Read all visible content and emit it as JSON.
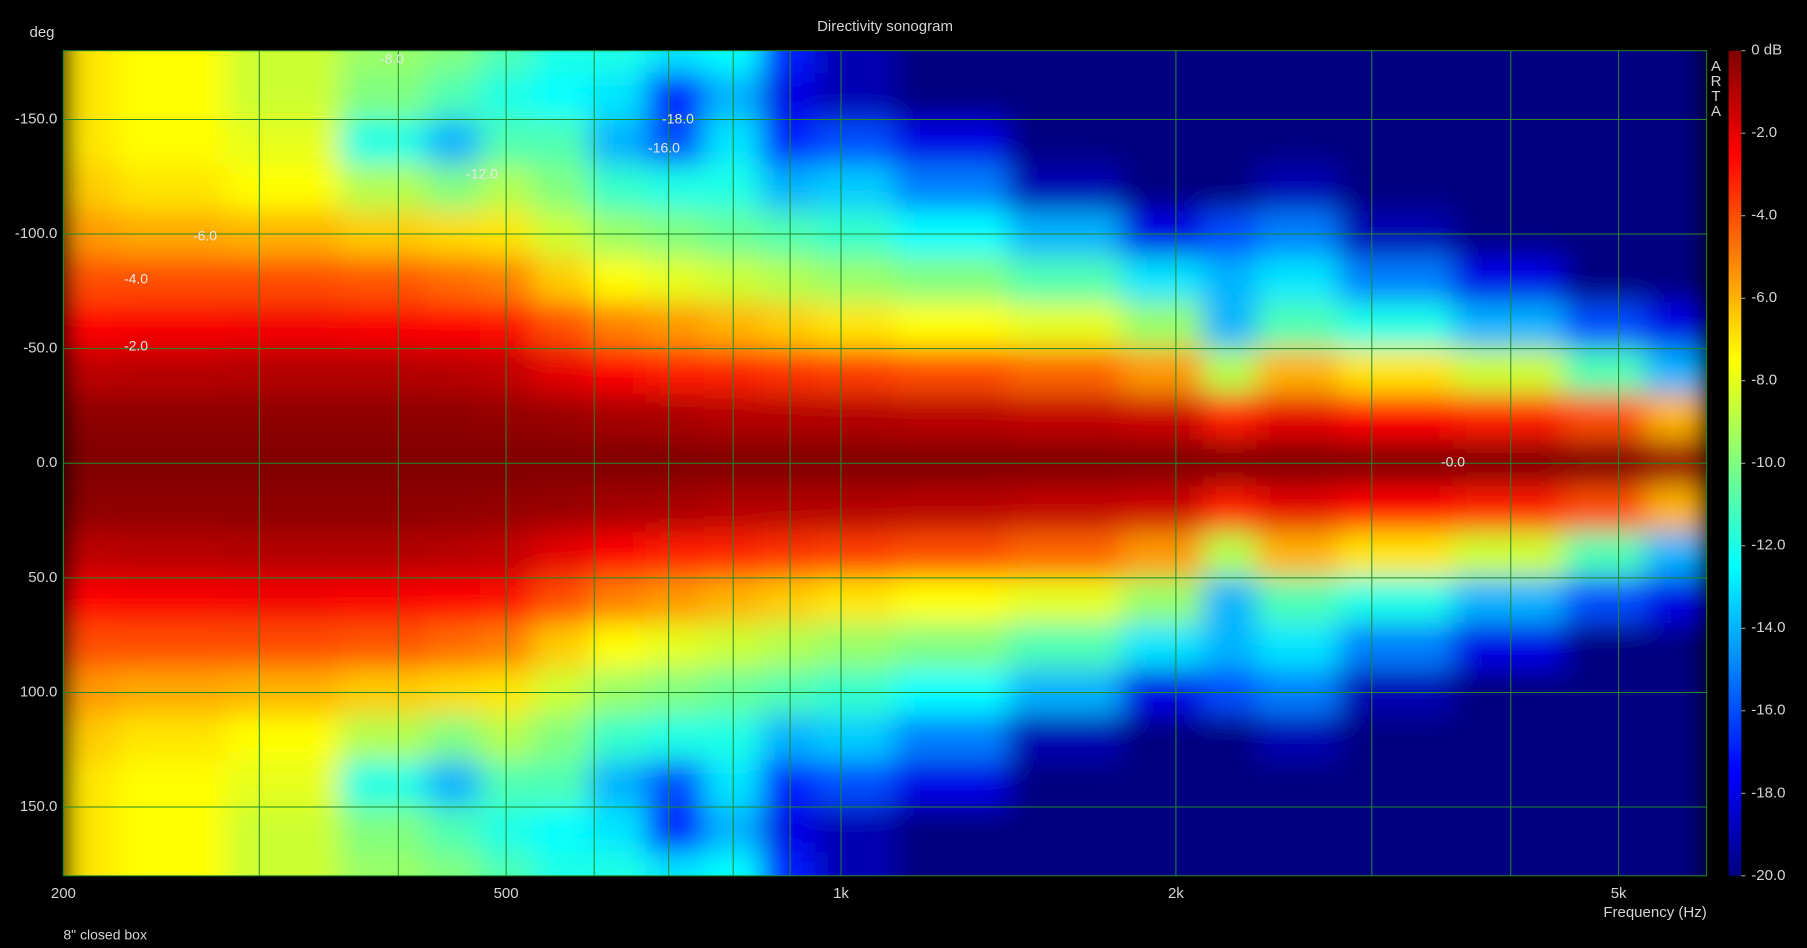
{
  "chart_data": {
    "type": "heatmap",
    "title": "Directivity sonogram",
    "ylabel": "deg",
    "xlabel": "Frequency (Hz)",
    "caption": "8\" closed box",
    "watermark": "ARTA",
    "xscale": "log",
    "xlim": [
      200,
      6000
    ],
    "xticks": [
      200,
      500,
      {
        "value": 1000,
        "label": "1k"
      },
      {
        "value": 2000,
        "label": "2k"
      },
      {
        "value": 5000,
        "label": "5k"
      }
    ],
    "xminorticks": [
      300,
      400,
      600,
      700,
      800,
      900,
      3000,
      4000
    ],
    "ylim": [
      -180,
      180
    ],
    "y_reversed": true,
    "yticks": [
      {
        "value": -150,
        "label": "-150.0"
      },
      {
        "value": -100,
        "label": "-100.0"
      },
      {
        "value": -50,
        "label": "-50.0"
      },
      {
        "value": 0,
        "label": "0.0"
      },
      {
        "value": 50,
        "label": "50.0"
      },
      {
        "value": 100,
        "label": "100.0"
      },
      {
        "value": 150,
        "label": "150.0"
      }
    ],
    "grid": true,
    "grid_color": "#1f8a2a",
    "zlim": [
      -20,
      0
    ],
    "zticks": [
      {
        "value": 0,
        "label": "0 dB"
      },
      {
        "value": -2,
        "label": "-2.0"
      },
      {
        "value": -4,
        "label": "-4.0"
      },
      {
        "value": -6,
        "label": "-6.0"
      },
      {
        "value": -8,
        "label": "-8.0"
      },
      {
        "value": -10,
        "label": "-10.0"
      },
      {
        "value": -12,
        "label": "-12.0"
      },
      {
        "value": -14,
        "label": "-14.0"
      },
      {
        "value": -16,
        "label": "-16.0"
      },
      {
        "value": -18,
        "label": "-18.0"
      },
      {
        "value": -20,
        "label": "-20.0"
      }
    ],
    "colormap": [
      "#000080",
      "#0000ff",
      "#0080ff",
      "#00ffff",
      "#80ff80",
      "#ffff00",
      "#ff8000",
      "#ff0000",
      "#800000"
    ],
    "annotations": [
      "-8.0",
      "-6.0",
      "-4.0",
      "-2.0",
      "-18.0",
      "-16.0",
      "-12.0",
      "-0.0"
    ],
    "x": [
      200,
      250,
      315,
      400,
      450,
      500,
      560,
      630,
      710,
      800,
      900,
      1000,
      1250,
      1600,
      2000,
      2240,
      2500,
      3150,
      4000,
      5000,
      5600
    ],
    "y": [
      -180,
      -160,
      -140,
      -120,
      -100,
      -80,
      -60,
      -40,
      -20,
      0,
      20,
      40,
      60,
      80,
      100,
      120,
      140,
      160,
      180
    ],
    "z": [
      [
        -7,
        -7.5,
        -8.5,
        -9.5,
        -10,
        -11,
        -12,
        -12,
        -13,
        -12.5,
        -17,
        -19,
        -20,
        -20,
        -20,
        -20,
        -20,
        -20,
        -20,
        -20,
        -20
      ],
      [
        -7,
        -7.5,
        -8.5,
        -10,
        -11,
        -12,
        -12.5,
        -13,
        -17,
        -14,
        -18,
        -19,
        -20,
        -20,
        -20,
        -20,
        -20,
        -20,
        -20,
        -20,
        -20
      ],
      [
        -7,
        -7.5,
        -8,
        -12,
        -14,
        -11,
        -11,
        -14,
        -16,
        -13,
        -17,
        -16,
        -18,
        -20,
        -20,
        -20,
        -20,
        -20,
        -20,
        -20,
        -20
      ],
      [
        -6.5,
        -7,
        -7.5,
        -9,
        -10,
        -9,
        -10,
        -11.5,
        -12,
        -12,
        -14,
        -13.5,
        -15,
        -19,
        -20,
        -20,
        -19,
        -20,
        -20,
        -20,
        -20
      ],
      [
        -5.5,
        -5.8,
        -6,
        -6.5,
        -6.8,
        -7,
        -8.5,
        -9.5,
        -10,
        -10.5,
        -11,
        -11.5,
        -12.5,
        -14,
        -18,
        -16,
        -15,
        -19,
        -20,
        -20,
        -20
      ],
      [
        -4,
        -4,
        -4,
        -4.2,
        -4.6,
        -5,
        -6.5,
        -7.5,
        -8,
        -8.5,
        -9,
        -9.5,
        -10,
        -11,
        -13,
        -14,
        -13,
        -15,
        -18,
        -20,
        -20
      ],
      [
        -2.5,
        -2.4,
        -2.3,
        -2.4,
        -2.6,
        -2.8,
        -4,
        -5,
        -5.5,
        -6,
        -6.5,
        -7,
        -7.5,
        -8,
        -9.5,
        -14,
        -11,
        -12,
        -14,
        -16,
        -18
      ],
      [
        -1.2,
        -1.1,
        -1,
        -1,
        -1.1,
        -1.3,
        -2,
        -2.5,
        -3,
        -3.2,
        -3.5,
        -3.7,
        -4,
        -4.5,
        -5.5,
        -9,
        -6,
        -7,
        -8.5,
        -11,
        -14
      ],
      [
        -0.3,
        -0.3,
        -0.3,
        -0.3,
        -0.3,
        -0.4,
        -0.5,
        -0.7,
        -0.8,
        -1,
        -1,
        -1,
        -1.1,
        -1.3,
        -1.5,
        -3,
        -2,
        -2.5,
        -3,
        -4,
        -6
      ],
      [
        0,
        0,
        0,
        0,
        0,
        0,
        0,
        0,
        0,
        0,
        0,
        0,
        0,
        0,
        0,
        0,
        0,
        0,
        0,
        0,
        -0.5
      ],
      [
        -0.3,
        -0.3,
        -0.3,
        -0.3,
        -0.3,
        -0.4,
        -0.5,
        -0.7,
        -0.8,
        -1,
        -1,
        -1,
        -1.1,
        -1.3,
        -1.5,
        -3,
        -2,
        -2.5,
        -3,
        -4,
        -6
      ],
      [
        -1.2,
        -1.1,
        -1,
        -1,
        -1.1,
        -1.3,
        -2,
        -2.5,
        -3,
        -3.2,
        -3.5,
        -3.7,
        -4,
        -4.5,
        -5.5,
        -9,
        -6,
        -7,
        -8.5,
        -11,
        -14
      ],
      [
        -2.5,
        -2.4,
        -2.3,
        -2.4,
        -2.6,
        -2.8,
        -4,
        -5,
        -5.5,
        -6,
        -6.5,
        -7,
        -7.5,
        -8,
        -9.5,
        -14,
        -11,
        -12,
        -14,
        -16,
        -18
      ],
      [
        -4,
        -4,
        -4,
        -4.2,
        -4.6,
        -5,
        -6.5,
        -7.5,
        -8,
        -8.5,
        -9,
        -9.5,
        -10,
        -11,
        -13,
        -14,
        -13,
        -15,
        -18,
        -20,
        -20
      ],
      [
        -5.5,
        -5.8,
        -6,
        -6.5,
        -6.8,
        -7,
        -8.5,
        -9.5,
        -10,
        -10.5,
        -11,
        -11.5,
        -12.5,
        -14,
        -18,
        -16,
        -15,
        -19,
        -20,
        -20,
        -20
      ],
      [
        -6.5,
        -7,
        -7.5,
        -9,
        -10,
        -9,
        -10,
        -11.5,
        -12,
        -12,
        -14,
        -13.5,
        -15,
        -19,
        -20,
        -20,
        -19,
        -20,
        -20,
        -20,
        -20
      ],
      [
        -7,
        -7.5,
        -8,
        -12,
        -14,
        -11,
        -11,
        -14,
        -16,
        -13,
        -17,
        -16,
        -18,
        -20,
        -20,
        -20,
        -20,
        -20,
        -20,
        -20,
        -20
      ],
      [
        -7,
        -7.5,
        -8.5,
        -10,
        -11,
        -12,
        -12.5,
        -13,
        -17,
        -14,
        -18,
        -19,
        -20,
        -20,
        -20,
        -20,
        -20,
        -20,
        -20,
        -20,
        -20
      ],
      [
        -7,
        -7.5,
        -8.5,
        -9.5,
        -10,
        -11,
        -12,
        -12,
        -13,
        -12.5,
        -17,
        -19,
        -20,
        -20,
        -20,
        -20,
        -20,
        -20,
        -20,
        -20,
        -20
      ]
    ]
  }
}
